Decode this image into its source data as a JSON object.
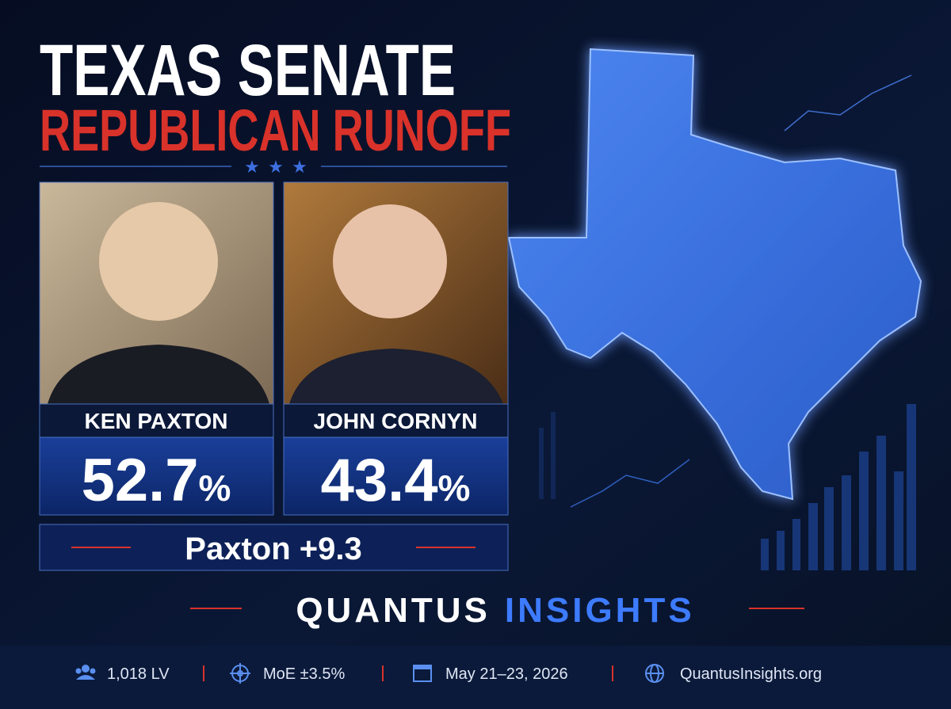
{
  "header": {
    "title": "TEXAS SENATE",
    "subtitle": "REPUBLICAN RUNOFF"
  },
  "candidates": [
    {
      "name": "KEN PAXTON",
      "pct": "52.7",
      "unit": "%"
    },
    {
      "name": "JOHN CORNYN",
      "pct": "43.4",
      "unit": "%"
    }
  ],
  "margin": "Paxton +9.3",
  "brand": {
    "first": "QUANTUS",
    "second": "INSIGHTS"
  },
  "footer": {
    "sample": "1,018 LV",
    "moe": "MoE ±3.5%",
    "dates": "May 21–23, 2026",
    "site": "QuantusInsights.org"
  }
}
